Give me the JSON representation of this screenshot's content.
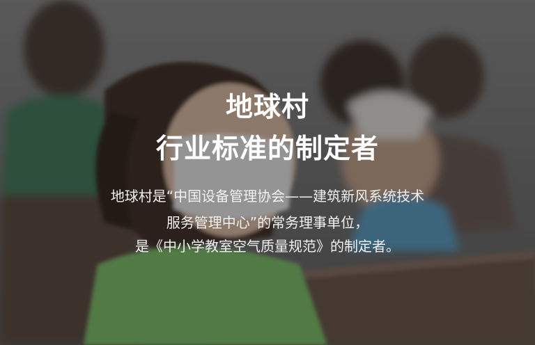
{
  "hero": {
    "title_line1": "地球村",
    "title_line2": "行业标准的制定者",
    "desc_line1": "地球村是“中国设备管理协会——建筑新风系统技术",
    "desc_line2": "服务管理中心”的常务理事单位，",
    "desc_line3": "是《中小学教室空气质量规范》的制定者。"
  },
  "colors": {
    "overlay": "#141414",
    "text": "#ffffff"
  }
}
